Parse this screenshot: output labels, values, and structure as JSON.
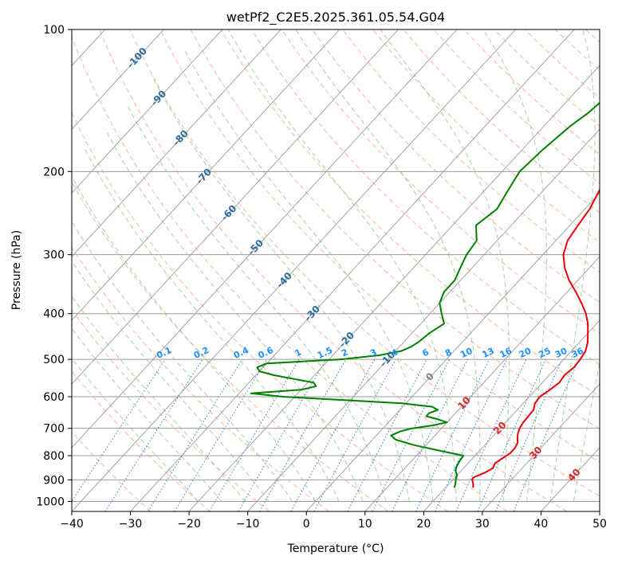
{
  "chart_data": {
    "type": "line",
    "subtype": "skew-t log-p",
    "title": "wetPf2_C2E5.2025.361.05.54.G04",
    "xlabel": "Temperature (°C)",
    "ylabel": "Pressure (hPa)",
    "xlim": [
      -40,
      50
    ],
    "ylim": [
      1050,
      100
    ],
    "x_ticks": [
      -40,
      -30,
      -20,
      -10,
      0,
      10,
      20,
      30,
      40,
      50
    ],
    "x_tick_labels": [
      "−40",
      "−30",
      "−20",
      "−10",
      "0",
      "10",
      "20",
      "30",
      "40",
      "50"
    ],
    "y_ticks": [
      100,
      200,
      300,
      400,
      500,
      600,
      700,
      800,
      900,
      1000
    ],
    "y_tick_labels": [
      "100",
      "200",
      "300",
      "400",
      "500",
      "600",
      "700",
      "800",
      "900",
      "1000"
    ],
    "grid": true,
    "colors": {
      "temperature": "#e8000b",
      "dewpoint": "#008000",
      "isotherm": "#9a9a9a",
      "dry_adiabat": "#ff9a7a",
      "moist_adiabat": "#7fbf7f",
      "mixing_ratio": "#2b7bd6",
      "label_dark_blue": "#2a6c9a",
      "label_light_blue": "#1e90ff",
      "label_red": "#d62728",
      "label_gray": "#808080"
    },
    "series": [
      {
        "name": "Temperature",
        "pressure": [
          935,
          915,
          900,
          890,
          870,
          850,
          830,
          810,
          790,
          770,
          750,
          735,
          720,
          700,
          680,
          660,
          640,
          620,
          600,
          580,
          560,
          540,
          520,
          500,
          480,
          460,
          440,
          420,
          400,
          380,
          360,
          340,
          320,
          300,
          280,
          260,
          240,
          220,
          200,
          180,
          160,
          150,
          140,
          130,
          120,
          110,
          105,
          100
        ],
        "values": [
          24.7,
          24.0,
          23.3,
          23.1,
          24.3,
          25.0,
          24.6,
          25.1,
          25.6,
          25.6,
          25.2,
          24.5,
          23.9,
          23.3,
          23.0,
          22.9,
          22.8,
          22.0,
          21.8,
          22.4,
          22.9,
          22.6,
          23.0,
          22.8,
          22.4,
          21.4,
          20.0,
          18.5,
          16.6,
          14.2,
          11.5,
          8.5,
          5.8,
          3.5,
          2.0,
          1.4,
          0.8,
          -0.4,
          -1.8,
          -3.4,
          -5.2,
          -6.2,
          -7.2,
          -8.2,
          -9.2,
          -9.8,
          -10.2,
          -10.6
        ]
      },
      {
        "name": "Dewpoint",
        "pressure": [
          935,
          915,
          900,
          880,
          860,
          840,
          820,
          800,
          780,
          760,
          740,
          725,
          710,
          700,
          690,
          680,
          670,
          660,
          650,
          640,
          630,
          620,
          610,
          600,
          590,
          580,
          570,
          560,
          550,
          540,
          530,
          520,
          510,
          500,
          490,
          480,
          470,
          460,
          440,
          420,
          400,
          380,
          360,
          340,
          320,
          300,
          280,
          260,
          240,
          220,
          200,
          180,
          160,
          150,
          140,
          130,
          120,
          115,
          110,
          105,
          100
        ],
        "values": [
          21.5,
          21.0,
          20.5,
          20.0,
          19.0,
          18.5,
          18.2,
          18.0,
          13.0,
          8.0,
          4.0,
          2.5,
          3.5,
          5.0,
          8.0,
          10.0,
          8.0,
          5.5,
          5.5,
          6.5,
          5.0,
          -0.5,
          -11.0,
          -22.0,
          -28.0,
          -20.0,
          -18.0,
          -19.0,
          -23.0,
          -27.0,
          -30.0,
          -31.0,
          -30.0,
          -18.0,
          -12.0,
          -9.0,
          -8.0,
          -7.5,
          -7.0,
          -6.0,
          -8.0,
          -10.0,
          -11.0,
          -11.0,
          -12.0,
          -13.0,
          -13.5,
          -16.0,
          -15.0,
          -16.0,
          -17.0,
          -16.5,
          -15.5,
          -14.5,
          -14.0,
          -13.0,
          -12.5,
          -13.0,
          -12.5,
          -11.2,
          -9.8
        ]
      }
    ],
    "isotherm_labels": [
      "-100",
      "-90",
      "-80",
      "-70",
      "-60",
      "-50",
      "-40",
      "-30",
      "-20",
      "-10",
      "0",
      "10",
      "20",
      "30",
      "40"
    ],
    "mixing_ratio_labels": [
      "0.1",
      "0.2",
      "0.4",
      "0.6",
      "1",
      "1.5",
      "2",
      "3",
      "4",
      "6",
      "8",
      "10",
      "13",
      "16",
      "20",
      "25",
      "30",
      "36"
    ]
  }
}
